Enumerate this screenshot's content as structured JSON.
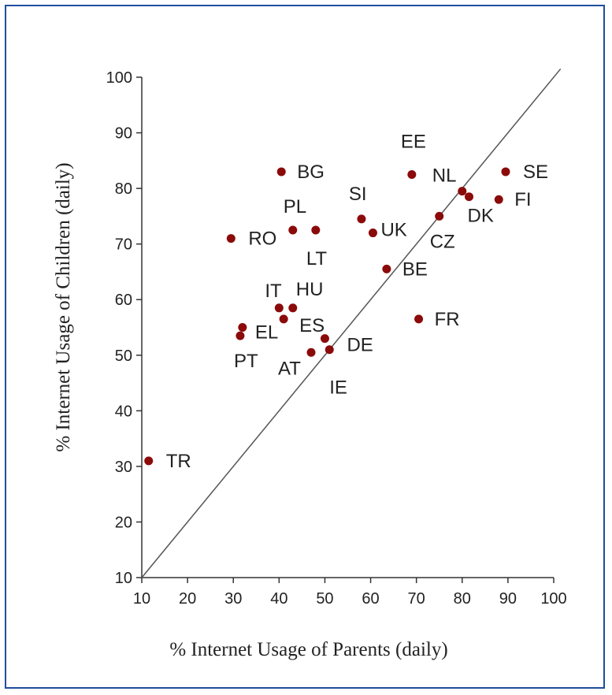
{
  "chart_data": {
    "type": "scatter",
    "xlabel": "% Internet  Usage of Parents (daily)",
    "ylabel": "% Internet  Usage of Children  (daily)",
    "xlim": [
      10,
      100
    ],
    "ylim": [
      10,
      100
    ],
    "x_ticks": [
      "10",
      "20",
      "30",
      "40",
      "50",
      "60",
      "70",
      "80",
      "90",
      "100"
    ],
    "y_ticks": [
      "10",
      "20",
      "30",
      "40",
      "50",
      "60",
      "70",
      "80",
      "90",
      "100"
    ],
    "reference_line": {
      "type": "diagonal",
      "from": [
        10,
        10
      ],
      "to": [
        100,
        100
      ]
    },
    "grid": false,
    "point_color": "#8b0a0a",
    "points": [
      {
        "label": "TR",
        "x": 11.5,
        "y": 31
      },
      {
        "label": "RO",
        "x": 29.5,
        "y": 71
      },
      {
        "label": "PT",
        "x": 31.5,
        "y": 53.5
      },
      {
        "label": "EL",
        "x": 32,
        "y": 55
      },
      {
        "label": "IT",
        "x": 40,
        "y": 58.5
      },
      {
        "label": "BG",
        "x": 40.5,
        "y": 83
      },
      {
        "label": "ES",
        "x": 41,
        "y": 56.5
      },
      {
        "label": "HU",
        "x": 43,
        "y": 58.5
      },
      {
        "label": "PL",
        "x": 43,
        "y": 72.5
      },
      {
        "label": "AT",
        "x": 47,
        "y": 50.5
      },
      {
        "label": "LT",
        "x": 48,
        "y": 72.5
      },
      {
        "label": "DE",
        "x": 50,
        "y": 53
      },
      {
        "label": "IE",
        "x": 51,
        "y": 51
      },
      {
        "label": "SI",
        "x": 58,
        "y": 74.5
      },
      {
        "label": "UK",
        "x": 60.5,
        "y": 72
      },
      {
        "label": "BE",
        "x": 63.5,
        "y": 65.5
      },
      {
        "label": "EE",
        "x": 69,
        "y": 82.5
      },
      {
        "label": "FR",
        "x": 70.5,
        "y": 56.5
      },
      {
        "label": "CZ",
        "x": 75,
        "y": 75
      },
      {
        "label": "NL",
        "x": 80,
        "y": 79.5
      },
      {
        "label": "DK",
        "x": 81.5,
        "y": 78.5
      },
      {
        "label": "FI",
        "x": 88,
        "y": 78
      },
      {
        "label": "SE",
        "x": 89.5,
        "y": 83
      }
    ]
  }
}
